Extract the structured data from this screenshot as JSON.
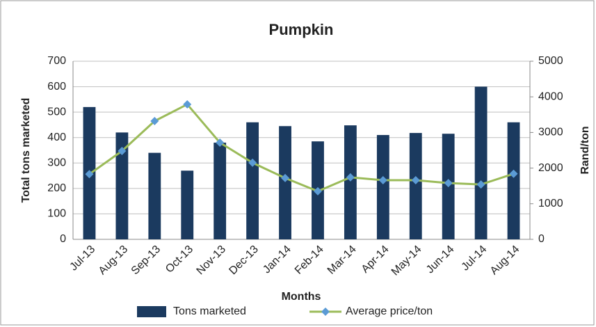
{
  "chart_data": {
    "type": "bar_line",
    "title": "Pumpkin",
    "x_label": "Months",
    "y_label": "Total tons marketed",
    "y2_label": "Rand/ton",
    "categories": [
      "Jul-13",
      "Aug-13",
      "Sep-13",
      "Oct-13",
      "Nov-13",
      "Dec-13",
      "Jan-14",
      "Feb-14",
      "Mar-14",
      "Apr-14",
      "May-14",
      "Jun-14",
      "Jul-14",
      "Aug-14"
    ],
    "series": [
      {
        "name": "Tons marketed",
        "type": "bar",
        "color": "#1b3a5f",
        "values": [
          520,
          420,
          340,
          270,
          380,
          460,
          445,
          385,
          448,
          410,
          418,
          415,
          600,
          460
        ]
      },
      {
        "name": "Average price/ton",
        "type": "line",
        "axis": "y2",
        "color": "#9bbb59",
        "marker_color": "#5b9bd5",
        "values": [
          1830,
          2480,
          3320,
          3790,
          2715,
          2150,
          1720,
          1350,
          1740,
          1660,
          1660,
          1580,
          1540,
          1840
        ]
      }
    ],
    "ylim": [
      0,
      700
    ],
    "yticks": [
      0,
      100,
      200,
      300,
      400,
      500,
      600,
      700
    ],
    "y2lim": [
      0,
      5000
    ],
    "y2ticks": [
      0,
      1000,
      2000,
      3000,
      4000,
      5000
    ],
    "grid": true,
    "legend": "bottom"
  }
}
